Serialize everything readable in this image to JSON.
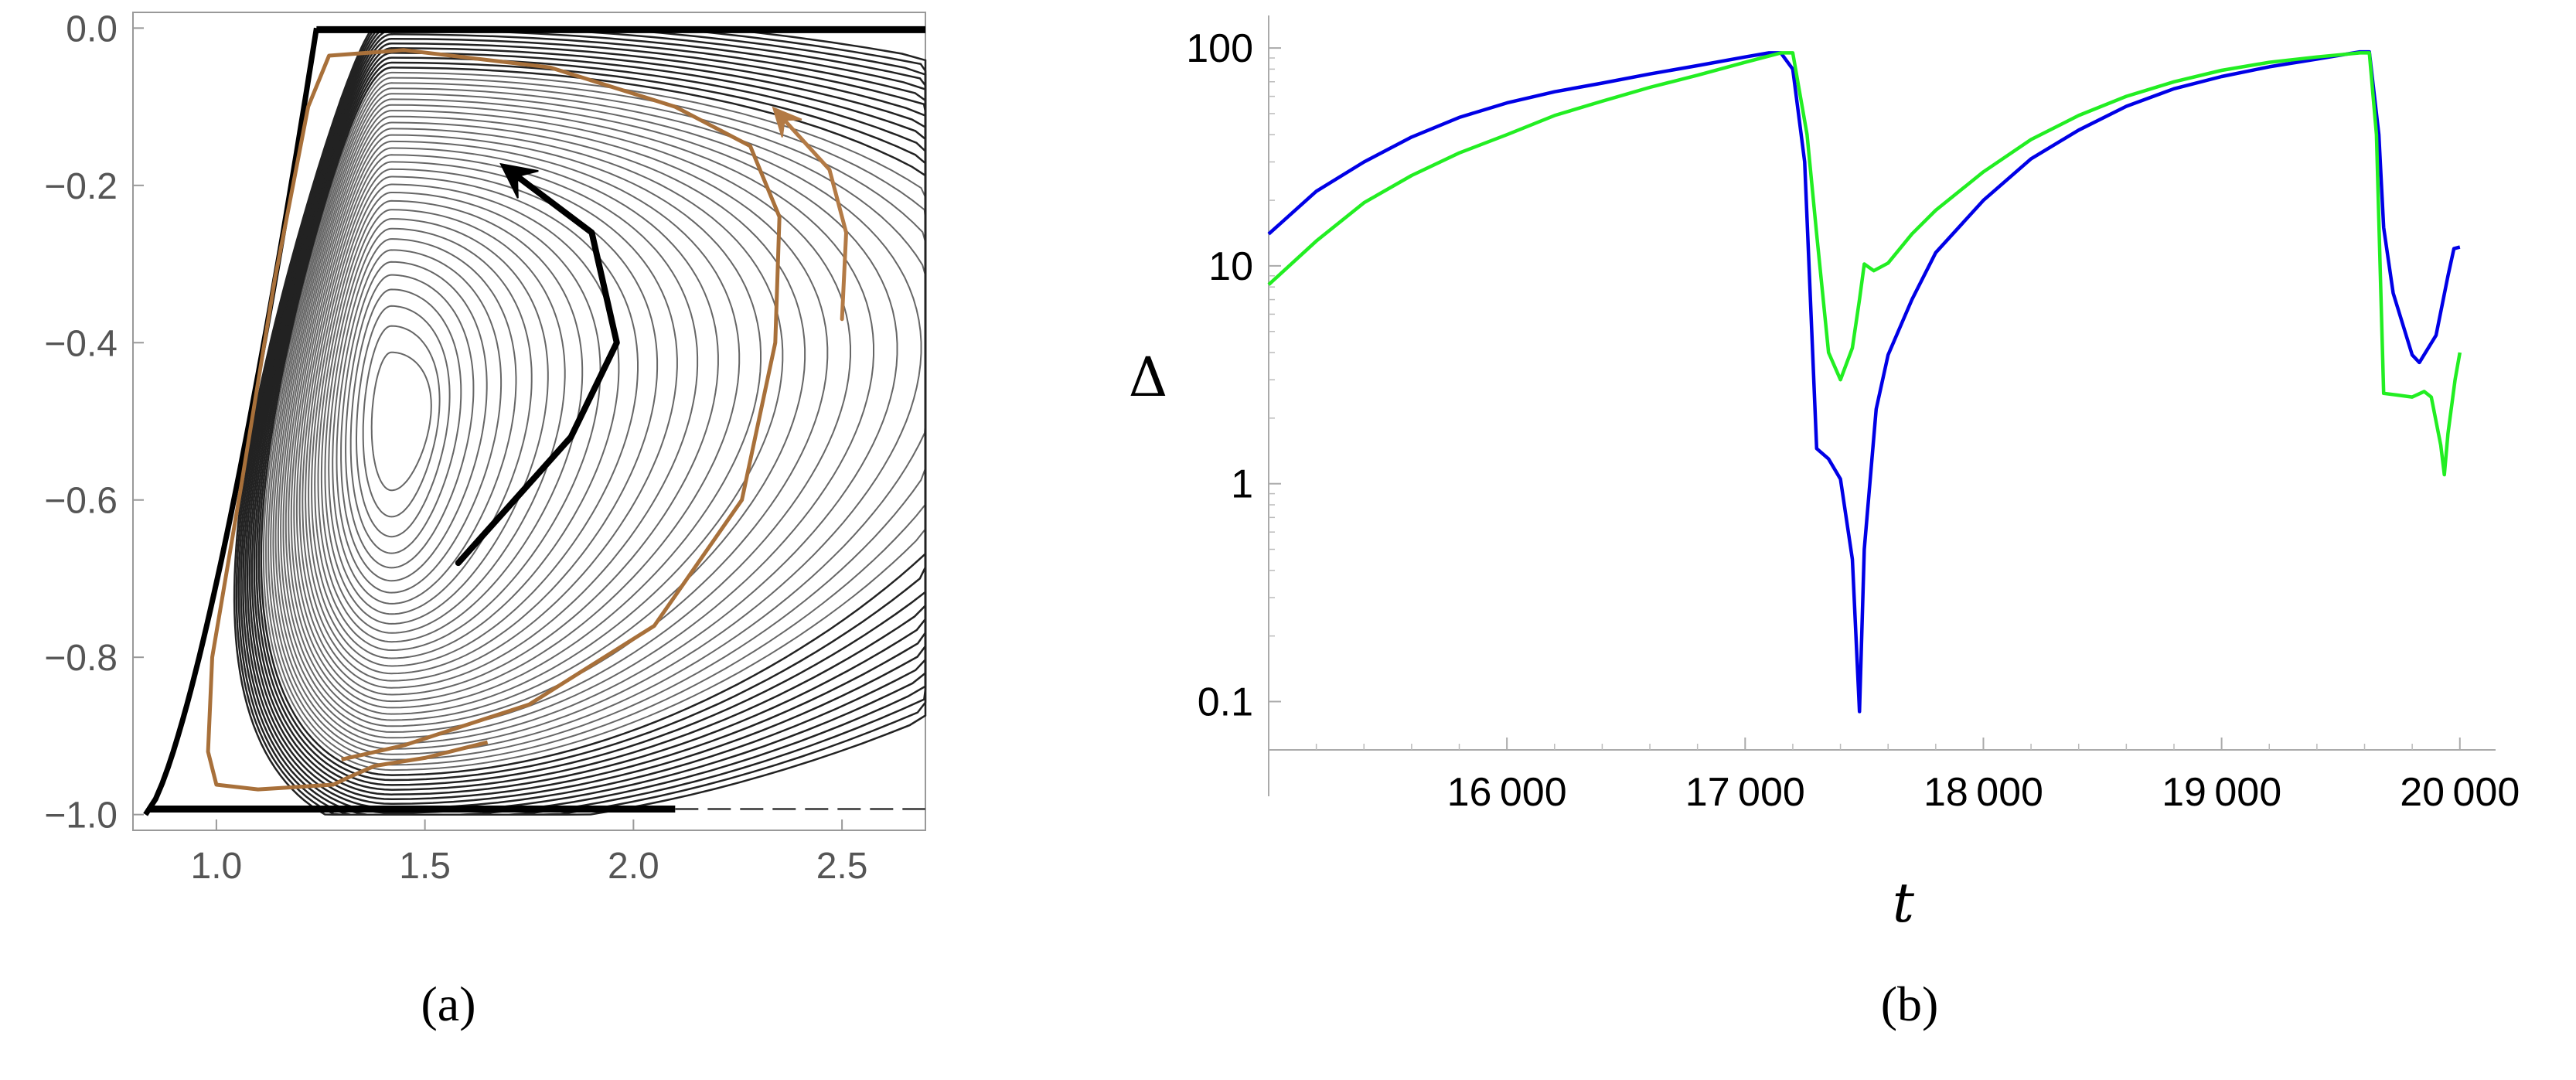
{
  "panels": {
    "a": {
      "caption": "(a)"
    },
    "b": {
      "caption": "(b)"
    }
  },
  "chart_data": [
    {
      "panel": "a",
      "type": "contour",
      "title": "",
      "xlabel": "",
      "ylabel": "",
      "xlim": [
        0.8,
        2.7
      ],
      "ylim": [
        -1.02,
        0.02
      ],
      "xticks": [
        1.0,
        1.5,
        2.0,
        2.5
      ],
      "xtick_labels": [
        "1.0",
        "1.5",
        "2.0",
        "2.5"
      ],
      "yticks": [
        0.0,
        -0.2,
        -0.4,
        -0.6,
        -0.8,
        -1.0
      ],
      "ytick_labels": [
        "0.0",
        "−0.2",
        "−0.4",
        "−0.6",
        "−0.8",
        "−1.0"
      ],
      "colors": {
        "contour": "#666666",
        "boundary": "#000000",
        "trajectory": "#a8703a",
        "arrow_black": "#000000",
        "arrow_brown": "#b37a45"
      },
      "contour_center": [
        1.42,
        -0.5
      ],
      "contour_level_count": 45,
      "trajectory": [
        [
          1.65,
          -0.908
        ],
        [
          1.5,
          -0.928
        ],
        [
          1.38,
          -0.938
        ],
        [
          1.32,
          -0.952
        ],
        [
          1.28,
          -0.962
        ],
        [
          1.1,
          -0.968
        ],
        [
          1.0,
          -0.962
        ],
        [
          0.98,
          -0.92
        ],
        [
          0.99,
          -0.8
        ],
        [
          1.06,
          -0.58
        ],
        [
          1.14,
          -0.32
        ],
        [
          1.22,
          -0.1
        ],
        [
          1.27,
          -0.035
        ],
        [
          1.45,
          -0.028
        ],
        [
          1.8,
          -0.05
        ],
        [
          2.1,
          -0.1
        ],
        [
          2.28,
          -0.15
        ],
        [
          2.35,
          -0.24
        ],
        [
          2.35,
          -0.24
        ],
        [
          2.34,
          -0.4
        ],
        [
          2.26,
          -0.6
        ],
        [
          2.05,
          -0.76
        ],
        [
          1.75,
          -0.86
        ],
        [
          1.45,
          -0.912
        ],
        [
          1.3,
          -0.93
        ]
      ],
      "arrows": [
        {
          "color": "black",
          "path": [
            [
              1.58,
              -0.68
            ],
            [
              1.85,
              -0.52
            ],
            [
              1.96,
              -0.4
            ],
            [
              1.9,
              -0.26
            ],
            [
              1.7,
              -0.18
            ]
          ]
        },
        {
          "color": "brown",
          "path": [
            [
              2.5,
              -0.37
            ],
            [
              2.51,
              -0.26
            ],
            [
              2.47,
              -0.18
            ],
            [
              2.35,
              -0.11
            ]
          ]
        }
      ]
    },
    {
      "panel": "b",
      "type": "line",
      "title": "",
      "xlabel": "t",
      "ylabel": "Δ",
      "yscale": "log",
      "xlim": [
        15000,
        20150
      ],
      "ylim": [
        0.06,
        130
      ],
      "xticks": [
        16000,
        17000,
        18000,
        19000,
        20000
      ],
      "xtick_labels": [
        "16 000",
        "17 000",
        "18 000",
        "19 000",
        "20 000"
      ],
      "yticks": [
        0.1,
        1,
        10,
        100
      ],
      "ytick_labels": [
        "0.1",
        "1",
        "10",
        "100"
      ],
      "series": [
        {
          "color": "#0000e6",
          "points": [
            [
              15000,
              14
            ],
            [
              15200,
              22
            ],
            [
              15400,
              30
            ],
            [
              15600,
              39
            ],
            [
              15800,
              48
            ],
            [
              16000,
              56
            ],
            [
              16200,
              63
            ],
            [
              16400,
              69
            ],
            [
              16600,
              76
            ],
            [
              16800,
              83
            ],
            [
              17000,
              91
            ],
            [
              17100,
              95
            ],
            [
              17150,
              95
            ],
            [
              17200,
              80
            ],
            [
              17250,
              30
            ],
            [
              17300,
              1.45
            ],
            [
              17350,
              1.3
            ],
            [
              17400,
              1.05
            ],
            [
              17450,
              0.45
            ],
            [
              17480,
              0.09
            ],
            [
              17500,
              0.5
            ],
            [
              17550,
              2.2
            ],
            [
              17600,
              3.9
            ],
            [
              17700,
              7
            ],
            [
              17800,
              11.5
            ],
            [
              18000,
              20
            ],
            [
              18200,
              31
            ],
            [
              18400,
              42
            ],
            [
              18600,
              54
            ],
            [
              18800,
              65
            ],
            [
              19000,
              74
            ],
            [
              19200,
              82
            ],
            [
              19400,
              89
            ],
            [
              19580,
              96
            ],
            [
              19620,
              96
            ],
            [
              19660,
              40
            ],
            [
              19680,
              15
            ],
            [
              19720,
              7.5
            ],
            [
              19800,
              3.9
            ],
            [
              19830,
              3.6
            ],
            [
              19900,
              4.8
            ],
            [
              19950,
              9
            ],
            [
              19975,
              12
            ],
            [
              20000,
              12.2
            ]
          ]
        },
        {
          "color": "#22ee22",
          "points": [
            [
              15000,
              8.2
            ],
            [
              15200,
              13
            ],
            [
              15400,
              19.5
            ],
            [
              15600,
              26
            ],
            [
              15800,
              33
            ],
            [
              16000,
              40
            ],
            [
              16200,
              49
            ],
            [
              16400,
              57
            ],
            [
              16600,
              66
            ],
            [
              16800,
              75
            ],
            [
              17000,
              86
            ],
            [
              17150,
              95
            ],
            [
              17200,
              95
            ],
            [
              17260,
              40
            ],
            [
              17300,
              14
            ],
            [
              17350,
              4
            ],
            [
              17400,
              3
            ],
            [
              17450,
              4.2
            ],
            [
              17480,
              7
            ],
            [
              17500,
              10.2
            ],
            [
              17540,
              9.5
            ],
            [
              17600,
              10.3
            ],
            [
              17700,
              14
            ],
            [
              17800,
              18
            ],
            [
              18000,
              27
            ],
            [
              18200,
              38
            ],
            [
              18400,
              49
            ],
            [
              18600,
              60
            ],
            [
              18800,
              70
            ],
            [
              19000,
              79
            ],
            [
              19200,
              86
            ],
            [
              19400,
              91
            ],
            [
              19580,
              95
            ],
            [
              19620,
              95
            ],
            [
              19650,
              40
            ],
            [
              19680,
              2.6
            ],
            [
              19740,
              2.55
            ],
            [
              19800,
              2.5
            ],
            [
              19850,
              2.65
            ],
            [
              19880,
              2.5
            ],
            [
              19920,
              1.5
            ],
            [
              19935,
              1.1
            ],
            [
              19950,
              1.7
            ],
            [
              19980,
              3
            ],
            [
              20000,
              4
            ]
          ]
        }
      ]
    }
  ]
}
